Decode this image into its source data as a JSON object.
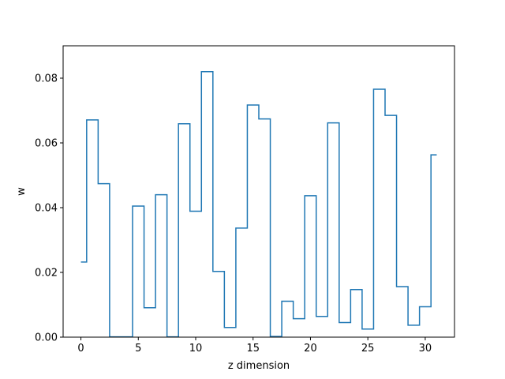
{
  "chart_data": {
    "type": "line",
    "drawstyle": "steps-mid",
    "title": "",
    "xlabel": "z dimension",
    "ylabel": "w",
    "xlim": [
      -1.55,
      32.55
    ],
    "ylim": [
      0,
      0.09
    ],
    "xticks": [
      0,
      5,
      10,
      15,
      20,
      25,
      30
    ],
    "yticks": [
      0.0,
      0.02,
      0.04,
      0.06,
      0.08
    ],
    "ytick_labels": [
      "0.00",
      "0.02",
      "0.04",
      "0.06",
      "0.08"
    ],
    "grid": false,
    "color": "#1f77b4",
    "x": [
      0,
      1,
      2,
      3,
      4,
      5,
      6,
      7,
      8,
      9,
      10,
      11,
      12,
      13,
      14,
      15,
      16,
      17,
      18,
      19,
      20,
      21,
      22,
      23,
      24,
      25,
      26,
      27,
      28,
      29,
      30,
      31
    ],
    "y": [
      0.0232,
      0.0671,
      0.0474,
      0.0001,
      0.0001,
      0.0405,
      0.0091,
      0.044,
      0.0001,
      0.0659,
      0.0389,
      0.082,
      0.0203,
      0.003,
      0.0337,
      0.0717,
      0.0674,
      0.0002,
      0.0111,
      0.0057,
      0.0437,
      0.0064,
      0.0662,
      0.0045,
      0.0147,
      0.0025,
      0.0766,
      0.0685,
      0.0156,
      0.0037,
      0.0094,
      0.0563
    ]
  }
}
